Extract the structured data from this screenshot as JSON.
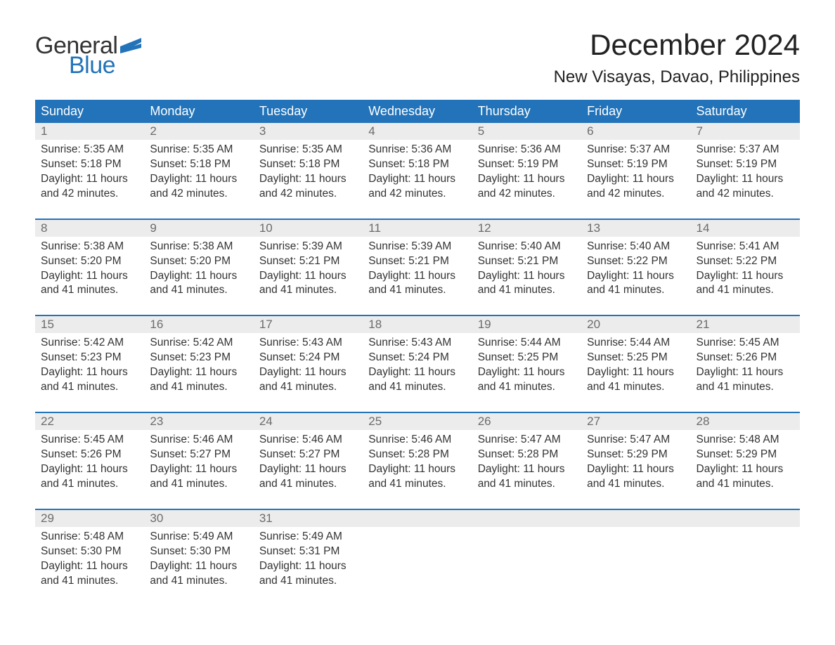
{
  "brand": {
    "word1": "General",
    "word2": "Blue",
    "color_dark": "#333333",
    "color_blue": "#2273b9"
  },
  "title": "December 2024",
  "location": "New Visayas, Davao, Philippines",
  "header_bg": "#2273b9",
  "header_fg": "#ffffff",
  "daynum_bg": "#ececec",
  "daynum_fg": "#6b6b6b",
  "row_border": "#2273b9",
  "days_of_week": [
    "Sunday",
    "Monday",
    "Tuesday",
    "Wednesday",
    "Thursday",
    "Friday",
    "Saturday"
  ],
  "weeks": [
    [
      {
        "num": "1",
        "sunrise": "Sunrise: 5:35 AM",
        "sunset": "Sunset: 5:18 PM",
        "daylight1": "Daylight: 11 hours",
        "daylight2": "and 42 minutes."
      },
      {
        "num": "2",
        "sunrise": "Sunrise: 5:35 AM",
        "sunset": "Sunset: 5:18 PM",
        "daylight1": "Daylight: 11 hours",
        "daylight2": "and 42 minutes."
      },
      {
        "num": "3",
        "sunrise": "Sunrise: 5:35 AM",
        "sunset": "Sunset: 5:18 PM",
        "daylight1": "Daylight: 11 hours",
        "daylight2": "and 42 minutes."
      },
      {
        "num": "4",
        "sunrise": "Sunrise: 5:36 AM",
        "sunset": "Sunset: 5:18 PM",
        "daylight1": "Daylight: 11 hours",
        "daylight2": "and 42 minutes."
      },
      {
        "num": "5",
        "sunrise": "Sunrise: 5:36 AM",
        "sunset": "Sunset: 5:19 PM",
        "daylight1": "Daylight: 11 hours",
        "daylight2": "and 42 minutes."
      },
      {
        "num": "6",
        "sunrise": "Sunrise: 5:37 AM",
        "sunset": "Sunset: 5:19 PM",
        "daylight1": "Daylight: 11 hours",
        "daylight2": "and 42 minutes."
      },
      {
        "num": "7",
        "sunrise": "Sunrise: 5:37 AM",
        "sunset": "Sunset: 5:19 PM",
        "daylight1": "Daylight: 11 hours",
        "daylight2": "and 42 minutes."
      }
    ],
    [
      {
        "num": "8",
        "sunrise": "Sunrise: 5:38 AM",
        "sunset": "Sunset: 5:20 PM",
        "daylight1": "Daylight: 11 hours",
        "daylight2": "and 41 minutes."
      },
      {
        "num": "9",
        "sunrise": "Sunrise: 5:38 AM",
        "sunset": "Sunset: 5:20 PM",
        "daylight1": "Daylight: 11 hours",
        "daylight2": "and 41 minutes."
      },
      {
        "num": "10",
        "sunrise": "Sunrise: 5:39 AM",
        "sunset": "Sunset: 5:21 PM",
        "daylight1": "Daylight: 11 hours",
        "daylight2": "and 41 minutes."
      },
      {
        "num": "11",
        "sunrise": "Sunrise: 5:39 AM",
        "sunset": "Sunset: 5:21 PM",
        "daylight1": "Daylight: 11 hours",
        "daylight2": "and 41 minutes."
      },
      {
        "num": "12",
        "sunrise": "Sunrise: 5:40 AM",
        "sunset": "Sunset: 5:21 PM",
        "daylight1": "Daylight: 11 hours",
        "daylight2": "and 41 minutes."
      },
      {
        "num": "13",
        "sunrise": "Sunrise: 5:40 AM",
        "sunset": "Sunset: 5:22 PM",
        "daylight1": "Daylight: 11 hours",
        "daylight2": "and 41 minutes."
      },
      {
        "num": "14",
        "sunrise": "Sunrise: 5:41 AM",
        "sunset": "Sunset: 5:22 PM",
        "daylight1": "Daylight: 11 hours",
        "daylight2": "and 41 minutes."
      }
    ],
    [
      {
        "num": "15",
        "sunrise": "Sunrise: 5:42 AM",
        "sunset": "Sunset: 5:23 PM",
        "daylight1": "Daylight: 11 hours",
        "daylight2": "and 41 minutes."
      },
      {
        "num": "16",
        "sunrise": "Sunrise: 5:42 AM",
        "sunset": "Sunset: 5:23 PM",
        "daylight1": "Daylight: 11 hours",
        "daylight2": "and 41 minutes."
      },
      {
        "num": "17",
        "sunrise": "Sunrise: 5:43 AM",
        "sunset": "Sunset: 5:24 PM",
        "daylight1": "Daylight: 11 hours",
        "daylight2": "and 41 minutes."
      },
      {
        "num": "18",
        "sunrise": "Sunrise: 5:43 AM",
        "sunset": "Sunset: 5:24 PM",
        "daylight1": "Daylight: 11 hours",
        "daylight2": "and 41 minutes."
      },
      {
        "num": "19",
        "sunrise": "Sunrise: 5:44 AM",
        "sunset": "Sunset: 5:25 PM",
        "daylight1": "Daylight: 11 hours",
        "daylight2": "and 41 minutes."
      },
      {
        "num": "20",
        "sunrise": "Sunrise: 5:44 AM",
        "sunset": "Sunset: 5:25 PM",
        "daylight1": "Daylight: 11 hours",
        "daylight2": "and 41 minutes."
      },
      {
        "num": "21",
        "sunrise": "Sunrise: 5:45 AM",
        "sunset": "Sunset: 5:26 PM",
        "daylight1": "Daylight: 11 hours",
        "daylight2": "and 41 minutes."
      }
    ],
    [
      {
        "num": "22",
        "sunrise": "Sunrise: 5:45 AM",
        "sunset": "Sunset: 5:26 PM",
        "daylight1": "Daylight: 11 hours",
        "daylight2": "and 41 minutes."
      },
      {
        "num": "23",
        "sunrise": "Sunrise: 5:46 AM",
        "sunset": "Sunset: 5:27 PM",
        "daylight1": "Daylight: 11 hours",
        "daylight2": "and 41 minutes."
      },
      {
        "num": "24",
        "sunrise": "Sunrise: 5:46 AM",
        "sunset": "Sunset: 5:27 PM",
        "daylight1": "Daylight: 11 hours",
        "daylight2": "and 41 minutes."
      },
      {
        "num": "25",
        "sunrise": "Sunrise: 5:46 AM",
        "sunset": "Sunset: 5:28 PM",
        "daylight1": "Daylight: 11 hours",
        "daylight2": "and 41 minutes."
      },
      {
        "num": "26",
        "sunrise": "Sunrise: 5:47 AM",
        "sunset": "Sunset: 5:28 PM",
        "daylight1": "Daylight: 11 hours",
        "daylight2": "and 41 minutes."
      },
      {
        "num": "27",
        "sunrise": "Sunrise: 5:47 AM",
        "sunset": "Sunset: 5:29 PM",
        "daylight1": "Daylight: 11 hours",
        "daylight2": "and 41 minutes."
      },
      {
        "num": "28",
        "sunrise": "Sunrise: 5:48 AM",
        "sunset": "Sunset: 5:29 PM",
        "daylight1": "Daylight: 11 hours",
        "daylight2": "and 41 minutes."
      }
    ],
    [
      {
        "num": "29",
        "sunrise": "Sunrise: 5:48 AM",
        "sunset": "Sunset: 5:30 PM",
        "daylight1": "Daylight: 11 hours",
        "daylight2": "and 41 minutes."
      },
      {
        "num": "30",
        "sunrise": "Sunrise: 5:49 AM",
        "sunset": "Sunset: 5:30 PM",
        "daylight1": "Daylight: 11 hours",
        "daylight2": "and 41 minutes."
      },
      {
        "num": "31",
        "sunrise": "Sunrise: 5:49 AM",
        "sunset": "Sunset: 5:31 PM",
        "daylight1": "Daylight: 11 hours",
        "daylight2": "and 41 minutes."
      },
      {
        "empty": true
      },
      {
        "empty": true
      },
      {
        "empty": true
      },
      {
        "empty": true
      }
    ]
  ]
}
